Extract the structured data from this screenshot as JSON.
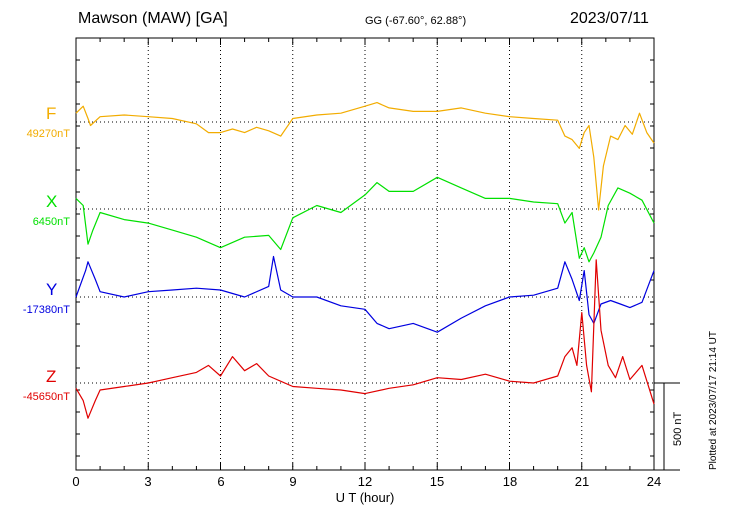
{
  "header": {
    "station": "Mawson (MAW)  [GA]",
    "coords": "GG (-67.60°,  62.88°)",
    "date": "2023/07/11"
  },
  "scale_label": "500 nT",
  "plotted_note": "Plotted at 2023/07/17 21:14 UT",
  "colors": {
    "F": "#f2ac00",
    "X": "#00e000",
    "Y": "#0000e0",
    "Z": "#e00000"
  },
  "chart_data": {
    "type": "line",
    "xlabel": "U T (hour)",
    "xlim": [
      0,
      24
    ],
    "xticks": [
      "0",
      "3",
      "6",
      "9",
      "12",
      "15",
      "18",
      "21",
      "24"
    ],
    "units_note": "series values are offsets from each baseline in nT",
    "series": [
      {
        "name": "F",
        "baseline_label": "49270nT",
        "x": [
          0,
          0.3,
          0.5,
          0.6,
          1,
          2,
          3,
          4,
          5,
          5.5,
          6,
          6.5,
          7,
          7.5,
          8,
          8.5,
          9,
          10,
          11,
          12,
          12.5,
          13,
          14,
          15,
          16,
          17,
          18,
          19,
          20,
          20.3,
          20.6,
          20.9,
          21.1,
          21.3,
          21.5,
          21.7,
          21.9,
          22.2,
          22.5,
          22.8,
          23.1,
          23.4,
          23.7,
          24
        ],
        "values": [
          50,
          90,
          20,
          -20,
          30,
          40,
          30,
          20,
          -10,
          -60,
          -60,
          -40,
          -60,
          -30,
          -50,
          -80,
          20,
          40,
          50,
          90,
          110,
          80,
          60,
          60,
          80,
          50,
          30,
          20,
          10,
          -80,
          -100,
          -150,
          -60,
          -20,
          -200,
          -500,
          -250,
          -80,
          -100,
          -20,
          -70,
          50,
          -60,
          -120
        ]
      },
      {
        "name": "X",
        "baseline_label": "6450nT",
        "x": [
          0,
          0.3,
          0.5,
          0.7,
          1,
          2,
          3,
          4,
          5,
          6,
          7,
          8,
          8.5,
          9,
          10,
          11,
          12,
          12.5,
          13,
          14,
          15,
          16,
          17,
          18,
          19,
          20,
          20.3,
          20.6,
          20.9,
          21.1,
          21.3,
          21.5,
          21.8,
          22.1,
          22.5,
          23,
          23.5,
          24
        ],
        "values": [
          60,
          20,
          -200,
          -120,
          -20,
          -60,
          -80,
          -120,
          -160,
          -220,
          -160,
          -150,
          -230,
          -50,
          20,
          -20,
          80,
          150,
          100,
          100,
          180,
          120,
          60,
          60,
          40,
          30,
          -80,
          -20,
          -280,
          -220,
          -300,
          -250,
          -160,
          20,
          120,
          90,
          50,
          -80
        ]
      },
      {
        "name": "Y",
        "baseline_label": "-17380nT",
        "x": [
          0,
          0.4,
          0.5,
          0.8,
          1,
          2,
          3,
          4,
          5,
          6,
          7,
          8,
          8.2,
          8.5,
          9,
          10,
          11,
          12,
          12.5,
          13,
          14,
          15,
          16,
          17,
          18,
          19,
          20,
          20.3,
          20.6,
          20.9,
          21.1,
          21.3,
          21.5,
          21.8,
          22.2,
          22.6,
          23,
          23.5,
          24
        ],
        "values": [
          0,
          150,
          200,
          100,
          30,
          0,
          30,
          40,
          50,
          40,
          0,
          60,
          230,
          40,
          0,
          0,
          -50,
          -70,
          -150,
          -180,
          -150,
          -200,
          -120,
          -50,
          0,
          10,
          50,
          200,
          100,
          -20,
          150,
          -100,
          -150,
          -40,
          -20,
          -40,
          -60,
          -30,
          150
        ]
      },
      {
        "name": "Z",
        "baseline_label": "-45650nT",
        "x": [
          0,
          0.3,
          0.5,
          0.8,
          1,
          2,
          3,
          4,
          5,
          5.5,
          6,
          6.5,
          7,
          7.5,
          8,
          9,
          10,
          11,
          12,
          13,
          14,
          15,
          16,
          17,
          18,
          19,
          20,
          20.3,
          20.6,
          20.8,
          21,
          21.2,
          21.4,
          21.6,
          21.8,
          22.1,
          22.4,
          22.7,
          23,
          23.5,
          24
        ],
        "values": [
          -30,
          -100,
          -200,
          -100,
          -40,
          -20,
          0,
          30,
          60,
          100,
          40,
          150,
          70,
          110,
          40,
          -20,
          -30,
          -40,
          -60,
          -30,
          -10,
          30,
          20,
          50,
          10,
          0,
          40,
          150,
          200,
          100,
          400,
          100,
          -50,
          700,
          300,
          100,
          30,
          150,
          20,
          100,
          -120
        ]
      }
    ]
  }
}
